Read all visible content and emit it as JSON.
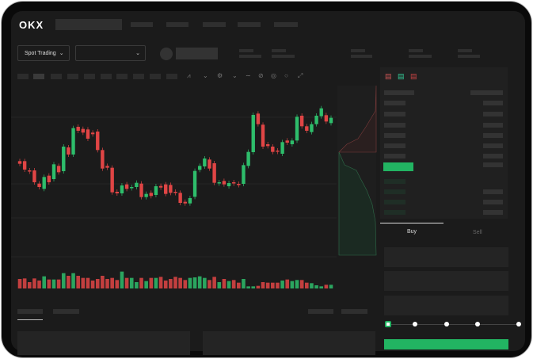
{
  "brand": {
    "logo": "OKX"
  },
  "toolbar": {
    "market_type": "Spot Trading",
    "pair_select": ""
  },
  "trade": {
    "tabs": [
      {
        "label": "Buy",
        "active": true
      },
      {
        "label": "Sell",
        "active": false
      }
    ],
    "leverage_slider_position": 0
  },
  "colors": {
    "up": "#2ebd6b",
    "down": "#e04545",
    "accent": "#22b462",
    "background": "#1b1b1b"
  },
  "chart_data": {
    "type": "candlestick",
    "candles": [
      [
        250,
        240
      ],
      [
        250,
        218
      ],
      [
        215,
        212
      ],
      [
        215,
        170
      ],
      [
        165,
        152
      ],
      [
        145,
        190
      ],
      [
        195,
        170
      ],
      [
        182,
        238
      ],
      [
        232,
        208
      ],
      [
        212,
        305
      ],
      [
        302,
        275
      ],
      [
        275,
        375
      ],
      [
        380,
        365
      ],
      [
        372,
        358
      ],
      [
        370,
        335
      ],
      [
        358,
        352
      ],
      [
        362,
        292
      ],
      [
        292,
        222
      ],
      [
        232,
        225
      ],
      [
        225,
        132
      ],
      [
        134,
        128
      ],
      [
        128,
        158
      ],
      [
        162,
        145
      ],
      [
        148,
        152
      ],
      [
        152,
        168
      ],
      [
        165,
        114
      ],
      [
        114,
        126
      ],
      [
        130,
        118
      ],
      [
        122,
        155
      ],
      [
        156,
        150
      ],
      [
        162,
        126
      ],
      [
        160,
        130
      ],
      [
        134,
        130
      ],
      [
        130,
        92
      ],
      [
        96,
        90
      ],
      [
        90,
        110
      ],
      [
        115,
        213
      ],
      [
        217,
        232
      ],
      [
        230,
        260
      ],
      [
        256,
        222
      ],
      [
        242,
        168
      ],
      [
        166,
        170
      ],
      [
        175,
        162
      ],
      [
        155,
        167
      ],
      [
        170,
        168
      ],
      [
        164,
        160
      ],
      [
        164,
        235
      ],
      [
        232,
        285
      ],
      [
        284,
        425
      ],
      [
        430,
        390
      ],
      [
        388,
        305
      ],
      [
        314,
        307
      ],
      [
        305,
        285
      ],
      [
        290,
        286
      ],
      [
        278,
        322
      ],
      [
        328,
        320
      ],
      [
        314,
        328
      ],
      [
        328,
        418
      ],
      [
        422,
        382
      ],
      [
        382,
        365
      ],
      [
        360,
        390
      ],
      [
        390,
        422
      ],
      [
        420,
        450
      ],
      [
        424,
        400
      ],
      [
        394,
        414
      ]
    ],
    "volume": [
      36,
      38,
      24,
      38,
      30,
      46,
      34,
      34,
      34,
      58,
      48,
      58,
      48,
      40,
      40,
      30,
      36,
      48,
      36,
      40,
      32,
      64,
      40,
      40,
      24,
      40,
      28,
      40,
      40,
      44,
      30,
      36,
      44,
      40,
      32,
      40,
      42,
      46,
      40,
      32,
      44,
      24,
      36,
      28,
      32,
      22,
      36,
      8,
      8,
      10,
      24,
      22,
      22,
      22,
      30,
      34,
      28,
      32,
      32,
      22,
      20,
      12,
      8,
      14,
      14
    ]
  }
}
